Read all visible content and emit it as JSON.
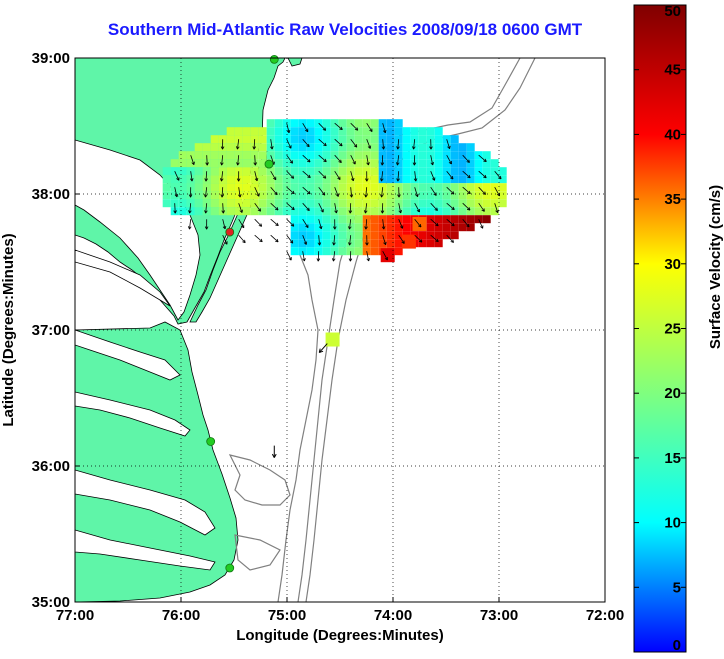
{
  "title": "Southern Mid-Atlantic Raw Velocities 2008/09/18 0600 GMT",
  "map": {
    "xlabel": "Longitude (Degrees:Minutes)",
    "ylabel": "Latitude (Degrees:Minutes)",
    "xlim": [
      -77,
      -72
    ],
    "ylim": [
      35,
      39
    ],
    "x_ticks": [
      "77:00",
      "76:00",
      "75:00",
      "74:00",
      "73:00",
      "72:00"
    ],
    "y_ticks": [
      "39:00",
      "38:00",
      "37:00",
      "36:00",
      "35:00"
    ],
    "grid": "dotted",
    "colors": {
      "land": "#5ff5a8",
      "coastline": "#000000",
      "bathymetry": "#808080",
      "station": "#22cc22",
      "station_alert": "#dd2222"
    },
    "stations": [
      {
        "lon": -75.12,
        "lat": 38.99,
        "status": "ok"
      },
      {
        "lon": -75.17,
        "lat": 38.22,
        "status": "ok"
      },
      {
        "lon": -75.54,
        "lat": 37.72,
        "status": "alert"
      },
      {
        "lon": -75.72,
        "lat": 36.18,
        "status": "ok"
      },
      {
        "lon": -75.54,
        "lat": 35.25,
        "status": "ok"
      }
    ]
  },
  "colorbar": {
    "label": "Surface Velocity (cm/s)",
    "min": 0,
    "max": 50,
    "ticks": [
      "0",
      "5",
      "10",
      "15",
      "20",
      "25",
      "30",
      "35",
      "40",
      "45",
      "50"
    ],
    "stops": [
      "#0000ff",
      "#00ffff",
      "#7fff7f",
      "#ffff00",
      "#ff0000",
      "#800000"
    ]
  },
  "chart_data": {
    "type": "vector-field",
    "description_units": "lon/lat degrees, speed cm/s",
    "speed_range": [
      0,
      50
    ],
    "highlights": [
      {
        "lon": -74.05,
        "lat": 37.55,
        "speed": 42
      },
      {
        "lon": -73.85,
        "lat": 37.65,
        "speed": 38
      },
      {
        "lon": -73.75,
        "lat": 37.78,
        "speed": 36
      },
      {
        "lon": -74.57,
        "lat": 36.93,
        "speed": 26
      }
    ]
  }
}
